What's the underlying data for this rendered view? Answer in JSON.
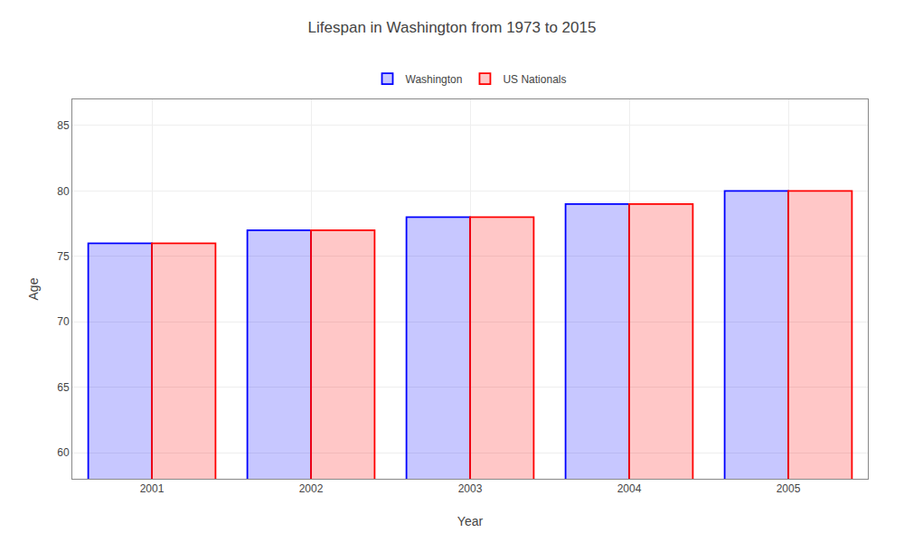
{
  "chart_data": {
    "type": "bar",
    "title": "Lifespan in Washington from 1973 to 2015",
    "xlabel": "Year",
    "ylabel": "Age",
    "categories": [
      "2001",
      "2002",
      "2003",
      "2004",
      "2005"
    ],
    "series": [
      {
        "name": "Washington",
        "color": "#0000ff",
        "values": [
          76,
          77,
          78,
          79,
          80
        ]
      },
      {
        "name": "US Nationals",
        "color": "#ff0000",
        "values": [
          76,
          77,
          78,
          79,
          80
        ]
      }
    ],
    "ylim": [
      58,
      87
    ],
    "yticks": [
      60,
      65,
      70,
      75,
      80,
      85
    ],
    "grid": true,
    "legend": "top"
  }
}
